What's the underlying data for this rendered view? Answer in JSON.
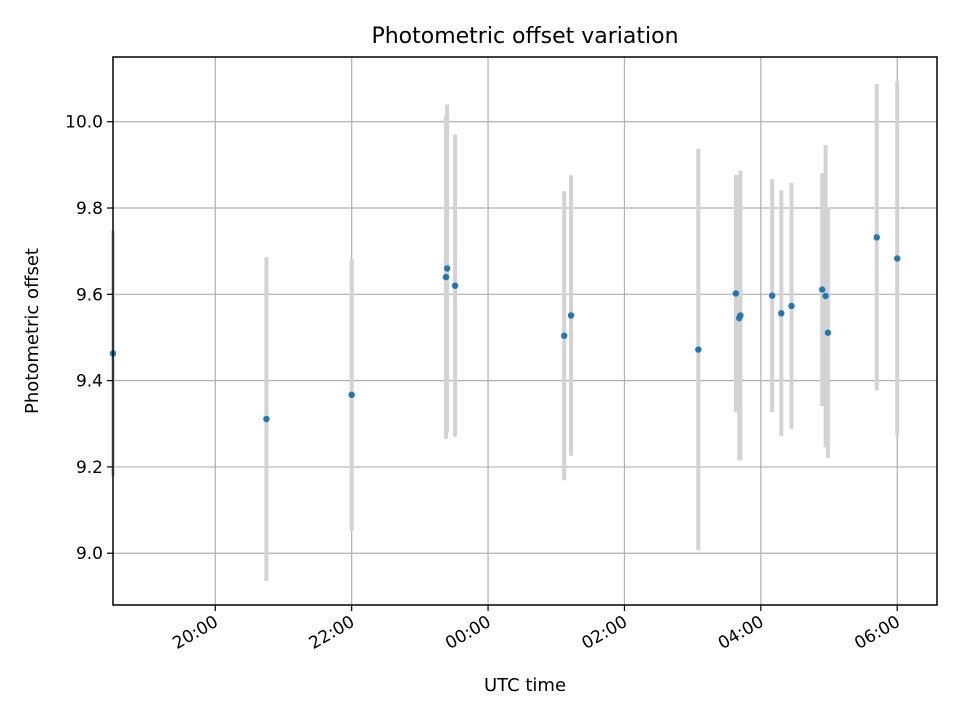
{
  "chart_data": {
    "type": "scatter",
    "title": "Photometric offset variation",
    "xlabel": "UTC time",
    "ylabel": "Photometric offset",
    "x_tick_labels": [
      "20:00",
      "22:00",
      "00:00",
      "02:00",
      "04:00",
      "06:00"
    ],
    "y_tick_labels": [
      "9.0",
      "9.2",
      "9.4",
      "9.6",
      "9.8",
      "10.0"
    ],
    "xlim": [
      "18:30",
      "06:35"
    ],
    "ylim": [
      8.88,
      10.15
    ],
    "grid": true,
    "colors": {
      "points": "#1f77b4",
      "error_bars": "#d3d3d3"
    },
    "points": [
      {
        "time": "18:30",
        "y": 9.463,
        "err": 0.285
      },
      {
        "time": "20:45",
        "y": 9.311,
        "err": 0.375
      },
      {
        "time": "22:00",
        "y": 9.367,
        "err": 0.315
      },
      {
        "time": "23:23",
        "y": 9.64,
        "err": 0.375
      },
      {
        "time": "23:24",
        "y": 9.66,
        "err": 0.38
      },
      {
        "time": "23:31",
        "y": 9.62,
        "err": 0.35
      },
      {
        "time": "01:07",
        "y": 9.504,
        "err": 0.335
      },
      {
        "time": "01:13",
        "y": 9.551,
        "err": 0.325
      },
      {
        "time": "03:05",
        "y": 9.472,
        "err": 0.465
      },
      {
        "time": "03:38",
        "y": 9.602,
        "err": 0.275
      },
      {
        "time": "03:41",
        "y": 9.545,
        "err": 0.33
      },
      {
        "time": "03:42",
        "y": 9.551,
        "err": 0.335
      },
      {
        "time": "04:10",
        "y": 9.597,
        "err": 0.27
      },
      {
        "time": "04:18",
        "y": 9.556,
        "err": 0.285
      },
      {
        "time": "04:27",
        "y": 9.573,
        "err": 0.285
      },
      {
        "time": "04:54",
        "y": 9.611,
        "err": 0.27
      },
      {
        "time": "04:57",
        "y": 9.596,
        "err": 0.35
      },
      {
        "time": "04:59",
        "y": 9.511,
        "err": 0.29
      },
      {
        "time": "05:42",
        "y": 9.732,
        "err": 0.355
      },
      {
        "time": "06:00",
        "y": 9.683,
        "err": 0.41
      }
    ]
  }
}
